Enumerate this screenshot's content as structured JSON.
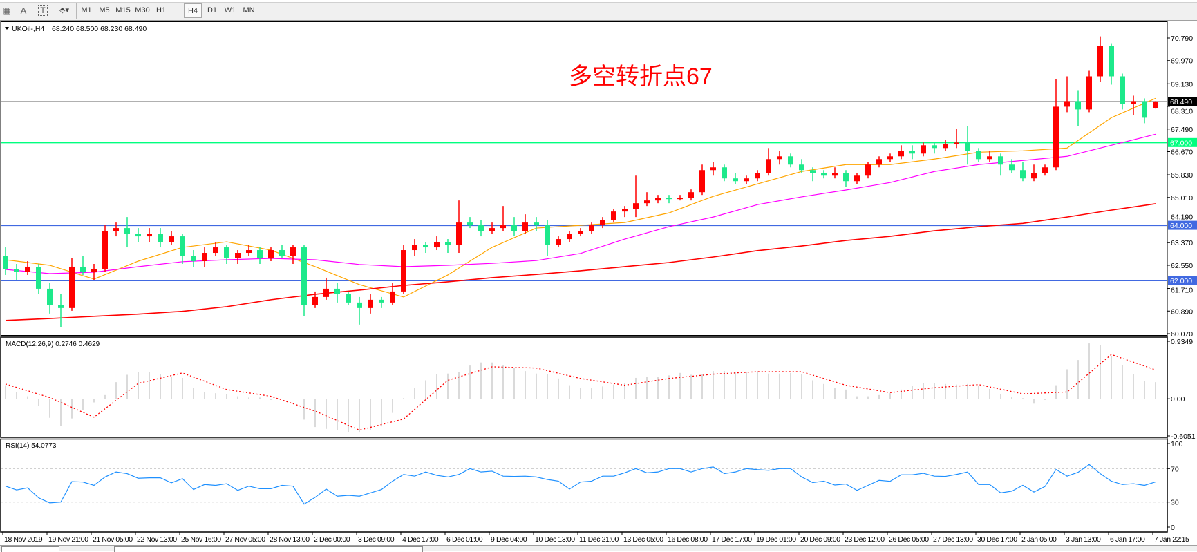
{
  "toolbar": {
    "tools": [
      {
        "name": "grid-icon",
        "glyph": "▦"
      },
      {
        "name": "text-icon",
        "glyph": "A"
      },
      {
        "name": "text-label-icon",
        "glyph": "T"
      },
      {
        "name": "arrows-icon",
        "glyph": "⬘▾"
      }
    ],
    "timeframes": [
      "M1",
      "M5",
      "M15",
      "M30",
      "H1",
      "H4",
      "D1",
      "W1",
      "MN"
    ],
    "active_timeframe": "H4"
  },
  "header": {
    "symbol": "UKOil-,H4",
    "ohlc": "68.240 68.500 68.230 68.490"
  },
  "annotation": "多空转折点67",
  "colors": {
    "bull": "#ff0000",
    "bear": "#1de98b",
    "ma_fast": "#ffa500",
    "ma_mid": "#ff00ff",
    "ma_slow": "#ff0000",
    "macd_hist": "#c0c0c0",
    "macd_signal": "#ff0000",
    "rsi": "#1e90ff"
  },
  "chart_data": {
    "type": "candlestick",
    "price_range": [
      60.07,
      70.79
    ],
    "price_ticks": [
      "70.790",
      "69.970",
      "69.130",
      "68.310",
      "67.490",
      "66.670",
      "65.830",
      "65.010",
      "64.190",
      "63.370",
      "62.550",
      "61.710",
      "60.890",
      "60.070"
    ],
    "levels": [
      {
        "value": 68.49,
        "label": "68.490",
        "color": "#808080",
        "label_bg": "#000000"
      },
      {
        "value": 67.0,
        "label": "67.000",
        "color": "#00ff7f",
        "label_bg": "#00ff7f"
      },
      {
        "value": 64.0,
        "label": "64.000",
        "color": "#4169e1",
        "label_bg": "#4169e1"
      },
      {
        "value": 62.0,
        "label": "62.000",
        "color": "#4169e1",
        "label_bg": "#4169e1"
      }
    ],
    "x_labels": [
      "18 Nov 2019",
      "19 Nov 21:00",
      "21 Nov 05:00",
      "22 Nov 13:00",
      "25 Nov 16:00",
      "27 Nov 05:00",
      "28 Nov 13:00",
      "2 Dec 00:00",
      "3 Dec 09:00",
      "4 Dec 17:00",
      "6 Dec 01:00",
      "9 Dec 04:00",
      "10 Dec 13:00",
      "11 Dec 21:00",
      "13 Dec 05:00",
      "16 Dec 08:00",
      "17 Dec 17:00",
      "19 Dec 01:00",
      "20 Dec 09:00",
      "23 Dec 12:00",
      "26 Dec 05:00",
      "27 Dec 13:00",
      "30 Dec 17:00",
      "2 Jan 05:00",
      "3 Jan 13:00",
      "6 Jan 17:00",
      "7 Jan 22:15"
    ],
    "candles_ohlc": [
      [
        62.9,
        63.2,
        62.2,
        62.4
      ],
      [
        62.4,
        62.6,
        62.0,
        62.3
      ],
      [
        62.3,
        62.7,
        62.2,
        62.5
      ],
      [
        62.5,
        62.6,
        61.5,
        61.7
      ],
      [
        61.7,
        61.9,
        60.8,
        61.1
      ],
      [
        61.1,
        61.5,
        60.3,
        61.0
      ],
      [
        61.0,
        62.8,
        60.9,
        62.5
      ],
      [
        62.5,
        62.9,
        62.2,
        62.3
      ],
      [
        62.3,
        62.6,
        62.0,
        62.4
      ],
      [
        62.4,
        64.0,
        62.3,
        63.8
      ],
      [
        63.8,
        64.1,
        63.6,
        63.9
      ],
      [
        63.9,
        64.3,
        63.2,
        63.7
      ],
      [
        63.7,
        63.9,
        63.4,
        63.6
      ],
      [
        63.6,
        63.9,
        63.4,
        63.7
      ],
      [
        63.7,
        63.9,
        63.2,
        63.4
      ],
      [
        63.4,
        63.8,
        63.3,
        63.6
      ],
      [
        63.6,
        63.7,
        62.6,
        62.9
      ],
      [
        62.9,
        63.1,
        62.5,
        62.7
      ],
      [
        62.7,
        63.2,
        62.5,
        63.0
      ],
      [
        63.0,
        63.4,
        62.9,
        63.2
      ],
      [
        63.2,
        63.3,
        62.6,
        62.8
      ],
      [
        62.8,
        63.1,
        62.6,
        63.0
      ],
      [
        63.0,
        63.3,
        62.9,
        63.1
      ],
      [
        63.1,
        63.2,
        62.6,
        62.8
      ],
      [
        62.8,
        63.2,
        62.7,
        63.1
      ],
      [
        63.1,
        63.3,
        62.8,
        62.9
      ],
      [
        62.9,
        63.3,
        62.6,
        63.2
      ],
      [
        63.2,
        63.3,
        60.7,
        61.1
      ],
      [
        61.1,
        61.6,
        61.0,
        61.4
      ],
      [
        61.4,
        62.1,
        61.3,
        61.7
      ],
      [
        61.7,
        61.9,
        61.2,
        61.5
      ],
      [
        61.5,
        61.6,
        61.1,
        61.2
      ],
      [
        61.2,
        61.4,
        60.4,
        61.0
      ],
      [
        61.0,
        61.5,
        60.8,
        61.3
      ],
      [
        61.3,
        61.4,
        61.0,
        61.2
      ],
      [
        61.2,
        61.9,
        61.1,
        61.6
      ],
      [
        61.6,
        63.3,
        61.5,
        63.1
      ],
      [
        63.1,
        63.5,
        62.9,
        63.3
      ],
      [
        63.3,
        63.4,
        63.0,
        63.2
      ],
      [
        63.2,
        63.6,
        63.1,
        63.4
      ],
      [
        63.4,
        63.5,
        63.0,
        63.3
      ],
      [
        63.3,
        64.9,
        63.0,
        64.1
      ],
      [
        64.1,
        64.3,
        63.9,
        64.0
      ],
      [
        64.0,
        64.2,
        63.6,
        63.8
      ],
      [
        63.8,
        64.1,
        63.7,
        63.9
      ],
      [
        63.9,
        64.7,
        63.8,
        64.0
      ],
      [
        64.0,
        64.3,
        63.6,
        63.8
      ],
      [
        63.8,
        64.4,
        63.7,
        64.1
      ],
      [
        64.1,
        64.3,
        63.8,
        64.0
      ],
      [
        64.0,
        64.2,
        62.9,
        63.3
      ],
      [
        63.3,
        63.6,
        63.2,
        63.5
      ],
      [
        63.5,
        63.8,
        63.4,
        63.7
      ],
      [
        63.7,
        63.9,
        63.6,
        63.8
      ],
      [
        63.8,
        64.1,
        63.7,
        64.0
      ],
      [
        64.0,
        64.3,
        63.9,
        64.2
      ],
      [
        64.2,
        64.6,
        64.1,
        64.5
      ],
      [
        64.5,
        64.7,
        64.3,
        64.6
      ],
      [
        64.6,
        65.8,
        64.3,
        64.8
      ],
      [
        64.8,
        65.2,
        64.7,
        64.9
      ],
      [
        64.9,
        65.1,
        64.8,
        65.0
      ],
      [
        65.0,
        65.1,
        64.8,
        64.95
      ],
      [
        64.95,
        65.1,
        64.9,
        65.0
      ],
      [
        65.0,
        65.3,
        64.9,
        65.2
      ],
      [
        65.2,
        66.2,
        65.1,
        66.0
      ],
      [
        66.0,
        66.3,
        65.8,
        66.1
      ],
      [
        66.1,
        66.2,
        65.6,
        65.7
      ],
      [
        65.7,
        65.9,
        65.5,
        65.6
      ],
      [
        65.6,
        65.8,
        65.5,
        65.7
      ],
      [
        65.7,
        66.0,
        65.6,
        65.9
      ],
      [
        65.9,
        66.8,
        65.8,
        66.4
      ],
      [
        66.4,
        66.7,
        66.2,
        66.5
      ],
      [
        66.5,
        66.6,
        66.1,
        66.2
      ],
      [
        66.2,
        66.4,
        65.9,
        66.0
      ],
      [
        66.0,
        66.1,
        65.6,
        65.9
      ],
      [
        65.9,
        66.0,
        65.7,
        65.8
      ],
      [
        65.8,
        66.1,
        65.7,
        65.9
      ],
      [
        65.9,
        66.0,
        65.4,
        65.6
      ],
      [
        65.6,
        65.9,
        65.5,
        65.8
      ],
      [
        65.8,
        66.3,
        65.7,
        66.2
      ],
      [
        66.2,
        66.5,
        66.1,
        66.4
      ],
      [
        66.4,
        66.6,
        66.3,
        66.5
      ],
      [
        66.5,
        66.9,
        66.4,
        66.7
      ],
      [
        66.7,
        66.9,
        66.4,
        66.6
      ],
      [
        66.6,
        67.0,
        66.5,
        66.9
      ],
      [
        66.9,
        67.0,
        66.6,
        66.8
      ],
      [
        66.8,
        67.1,
        66.7,
        66.95
      ],
      [
        66.95,
        67.5,
        66.8,
        67.0
      ],
      [
        67.0,
        67.6,
        66.2,
        66.7
      ],
      [
        66.7,
        66.8,
        66.3,
        66.4
      ],
      [
        66.4,
        66.7,
        66.3,
        66.5
      ],
      [
        66.5,
        66.6,
        65.8,
        66.2
      ],
      [
        66.2,
        66.4,
        65.9,
        66.0
      ],
      [
        66.0,
        66.3,
        65.6,
        65.7
      ],
      [
        65.7,
        66.2,
        65.6,
        65.9
      ],
      [
        65.9,
        66.2,
        65.8,
        66.1
      ],
      [
        66.1,
        69.3,
        66.0,
        68.3
      ],
      [
        68.3,
        69.4,
        68.1,
        68.5
      ],
      [
        68.5,
        68.9,
        67.6,
        68.2
      ],
      [
        68.2,
        69.6,
        68.1,
        69.4
      ],
      [
        69.4,
        70.85,
        69.2,
        70.5
      ],
      [
        70.5,
        70.6,
        69.1,
        69.4
      ],
      [
        69.4,
        69.5,
        68.2,
        68.4
      ],
      [
        68.4,
        68.7,
        68.0,
        68.5
      ],
      [
        68.5,
        68.6,
        67.7,
        67.9
      ],
      [
        68.24,
        68.5,
        68.23,
        68.49
      ]
    ],
    "moving_averages_every_4_bars": [
      {
        "color": "#ffa500",
        "values": [
          62.75,
          62.55,
          62.05,
          62.7,
          63.2,
          63.4,
          63.1,
          62.5,
          61.85,
          61.4,
          62.2,
          63.2,
          63.9,
          64.0,
          64.1,
          64.45,
          65.05,
          65.5,
          65.95,
          66.2,
          66.2,
          66.4,
          66.65,
          66.7,
          66.8,
          67.9,
          68.6
        ]
      },
      {
        "color": "#ff00ff",
        "values": [
          62.4,
          62.25,
          62.3,
          62.5,
          62.68,
          62.75,
          62.8,
          62.75,
          62.58,
          62.5,
          62.55,
          62.62,
          62.72,
          62.98,
          63.5,
          63.95,
          64.3,
          64.75,
          65.03,
          65.28,
          65.55,
          65.95,
          66.2,
          66.35,
          66.5,
          66.9,
          67.3
        ]
      },
      {
        "color": "#ff0000",
        "values": [
          60.55,
          60.62,
          60.7,
          60.78,
          60.88,
          61.05,
          61.3,
          61.5,
          61.65,
          61.82,
          61.95,
          62.1,
          62.22,
          62.35,
          62.5,
          62.65,
          62.85,
          63.08,
          63.25,
          63.45,
          63.6,
          63.8,
          63.95,
          64.07,
          64.3,
          64.55,
          64.78
        ]
      }
    ],
    "macd": {
      "label": "MACD(12,26,9) 0.2746 0.4629",
      "range": [
        -0.6051,
        0.9349
      ],
      "axis_labels": [
        "0.9349",
        "0.00",
        "-0.6051"
      ],
      "histogram": [
        0.22,
        0.11,
        0.04,
        -0.12,
        -0.31,
        -0.44,
        -0.32,
        -0.18,
        -0.06,
        0.06,
        0.27,
        0.39,
        0.44,
        0.44,
        0.4,
        0.35,
        0.34,
        0.18,
        0.11,
        0.09,
        0.08,
        0.04,
        0.02,
        0.02,
        -0.02,
        0.0,
        0.0,
        -0.34,
        -0.46,
        -0.49,
        -0.51,
        -0.54,
        -0.55,
        -0.51,
        -0.45,
        -0.23,
        0.01,
        0.17,
        0.3,
        0.4,
        0.41,
        0.43,
        0.54,
        0.59,
        0.59,
        0.54,
        0.5,
        0.45,
        0.41,
        0.4,
        0.33,
        0.22,
        0.18,
        0.17,
        0.2,
        0.23,
        0.26,
        0.34,
        0.36,
        0.35,
        0.38,
        0.42,
        0.39,
        0.4,
        0.45,
        0.45,
        0.44,
        0.44,
        0.45,
        0.41,
        0.41,
        0.42,
        0.4,
        0.3,
        0.24,
        0.17,
        0.15,
        0.04,
        0.04,
        0.06,
        0.09,
        0.15,
        0.21,
        0.26,
        0.26,
        0.24,
        0.23,
        0.24,
        0.21,
        0.16,
        0.08,
        0.03,
        0.01,
        -0.08,
        -0.02,
        0.22,
        0.48,
        0.63,
        0.9,
        0.87,
        0.7,
        0.55,
        0.4,
        0.29,
        0.27
      ],
      "signal_every_4_bars": [
        0.24,
        0.02,
        -0.3,
        0.25,
        0.42,
        0.15,
        0.04,
        -0.2,
        -0.51,
        -0.33,
        0.3,
        0.52,
        0.5,
        0.33,
        0.22,
        0.33,
        0.4,
        0.44,
        0.44,
        0.22,
        0.1,
        0.18,
        0.23,
        0.08,
        0.11,
        0.72,
        0.47
      ]
    },
    "rsi": {
      "label": "RSI(14) 54.0773",
      "range": [
        0,
        100
      ],
      "levels": [
        70,
        30
      ],
      "axis_labels": [
        "100",
        "70",
        "30",
        "0"
      ],
      "values": [
        49,
        44.5,
        47,
        35,
        29,
        30,
        54.5,
        54,
        50,
        60,
        66,
        64,
        58.5,
        59,
        59,
        53,
        58,
        45,
        51,
        50,
        52,
        44,
        49,
        46,
        46,
        50,
        49,
        27.5,
        35.6,
        45.5,
        37,
        38,
        37,
        41,
        45,
        55,
        63,
        61,
        66,
        62,
        60,
        63,
        70,
        66,
        67,
        61,
        60.7,
        61,
        60,
        57,
        55,
        45.5,
        54,
        55,
        61,
        61,
        65,
        70,
        65,
        66,
        70,
        70,
        66,
        70,
        72,
        64,
        66,
        70,
        68.8,
        68,
        70,
        70,
        60,
        53.3,
        55,
        50.4,
        51.6,
        44,
        50,
        56,
        54.8,
        62.6,
        62.6,
        64.4,
        61,
        60.7,
        63,
        66,
        51,
        51,
        41,
        43,
        50,
        42,
        48.6,
        69,
        61,
        65.6,
        75,
        64,
        55,
        51,
        52,
        50,
        54.07
      ]
    }
  }
}
